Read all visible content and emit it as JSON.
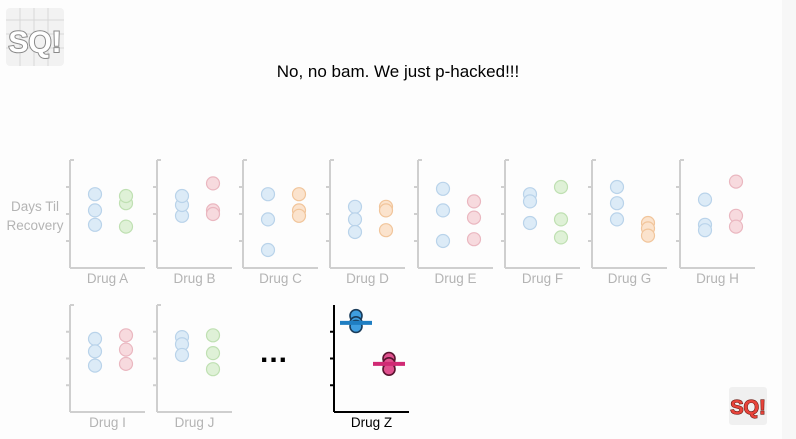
{
  "slide": {
    "headline": "No, no bam. We just p-hacked!!!",
    "ylabel_line1": "Days Til",
    "ylabel_line2": "Recovery",
    "ellipsis": "...",
    "logo_text": "SQ!"
  },
  "colors": {
    "axis_faded": "#cfcfcf",
    "axis_bold": "#000000",
    "label_faded": "#b4b4b4",
    "label_bold": "#000000",
    "dot_blue_fill": "#dcebf7",
    "dot_blue_stroke": "#b9d3ea",
    "dot_green_fill": "#dff1d7",
    "dot_green_stroke": "#bfe0b2",
    "dot_pink_fill": "#f7dade",
    "dot_pink_stroke": "#eab7c0",
    "dot_orange_fill": "#fbe3cd",
    "dot_orange_stroke": "#f1c59b",
    "drugz_blue_fill": "#3f9ee0",
    "drugz_blue_stroke": "#1a3c5a",
    "drugz_blue_bar": "#1f7ec2",
    "drugz_pink_fill": "#e0508e",
    "drugz_pink_stroke": "#5a1530",
    "drugz_pink_bar": "#d02a74"
  },
  "chart_data": [
    {
      "type": "scatter",
      "name": "Drug A",
      "highlighted": false,
      "control": [
        28,
        36,
        19
      ],
      "treated": [
        24,
        37,
        20
      ]
    },
    {
      "type": "scatter",
      "name": "Drug B",
      "highlighted": false,
      "control": [
        31,
        25,
        20
      ],
      "treated": [
        13,
        28,
        30
      ]
    },
    {
      "type": "scatter",
      "name": "Drug C",
      "highlighted": false,
      "control": [
        19,
        33,
        50
      ],
      "treated": [
        19,
        28,
        31
      ]
    },
    {
      "type": "scatter",
      "name": "Drug D",
      "highlighted": false,
      "control": [
        26,
        33,
        40
      ],
      "treated": [
        26,
        28,
        39
      ]
    },
    {
      "type": "scatter",
      "name": "Drug E",
      "highlighted": false,
      "control": [
        16,
        28,
        45
      ],
      "treated": [
        23,
        32,
        44
      ]
    },
    {
      "type": "scatter",
      "name": "Drug F",
      "highlighted": false,
      "control": [
        19,
        23,
        35
      ],
      "treated": [
        15,
        33,
        43
      ]
    },
    {
      "type": "scatter",
      "name": "Drug G",
      "highlighted": false,
      "control": [
        15,
        24,
        33
      ],
      "treated": [
        35,
        38,
        42
      ]
    },
    {
      "type": "scatter",
      "name": "Drug H",
      "highlighted": false,
      "control": [
        22,
        36,
        39
      ],
      "treated": [
        12,
        31,
        37
      ]
    },
    {
      "type": "scatter",
      "name": "Drug I",
      "highlighted": false,
      "control": [
        19,
        26,
        34
      ],
      "treated": [
        17,
        25,
        33
      ]
    },
    {
      "type": "scatter",
      "name": "Drug J",
      "highlighted": false,
      "control": [
        18,
        22,
        28
      ],
      "treated": [
        17,
        27,
        36
      ]
    },
    {
      "type": "scatter",
      "name": "Drug Z",
      "highlighted": true,
      "control": [
        6,
        10,
        12
      ],
      "treated": [
        30,
        33,
        36
      ],
      "control_mean": 10,
      "treated_mean": 33
    }
  ]
}
